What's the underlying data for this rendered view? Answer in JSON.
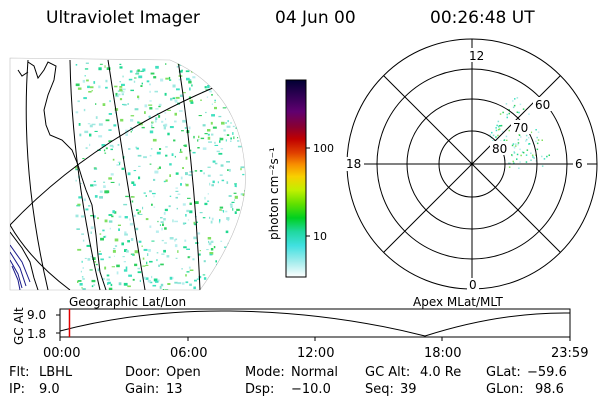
{
  "header": {
    "instrument": "Ultraviolet Imager",
    "date": "04 Jun 00",
    "time": "00:26:48 UT"
  },
  "geo_panel": {
    "label": "Geographic Lat/Lon"
  },
  "colorbar": {
    "unit_label": "photon cm⁻²s⁻¹",
    "ticks": [
      "100",
      "10"
    ],
    "colors": [
      "#000033",
      "#2a0050",
      "#600070",
      "#8a0030",
      "#c00000",
      "#e04000",
      "#f89000",
      "#f8d000",
      "#c0f000",
      "#60e000",
      "#00d020",
      "#20d8a0",
      "#40e0e0",
      "#a0ecec",
      "#ffffff"
    ]
  },
  "polar_panel": {
    "label": "Apex MLat/MLT",
    "mlt_labels": {
      "top": "12",
      "right": "6",
      "bottom": "0",
      "left": "18"
    },
    "lat_labels": [
      "60",
      "70",
      "80"
    ]
  },
  "timeline": {
    "ylabel": "GC Alt",
    "y_ticks": [
      "9.0",
      "1.8"
    ],
    "x_ticks": [
      "00:00",
      "06:00",
      "12:00",
      "18:00",
      "23:59"
    ],
    "current_time_fraction": 0.0186
  },
  "status": {
    "filter_label": "Flt:",
    "filter_value": "LBHL",
    "ip_label": "IP:",
    "ip_value": "9.0",
    "door_label": "Door:",
    "door_value": "Open",
    "gain_label": "Gain:",
    "gain_value": "13",
    "mode_label": "Mode:",
    "mode_value": "Normal",
    "dsp_label": "Dsp:",
    "dsp_value": "−10.0",
    "gcalt_label": "GC Alt:",
    "gcalt_value": "4.0 Re",
    "seq_label": "Seq:",
    "seq_value": "39",
    "glat_label": "GLat:",
    "glat_value": "−59.6",
    "glon_label": "GLon:",
    "glon_value": "98.6"
  },
  "colors": {
    "marker": "#e00000",
    "line": "#000000",
    "background": "#ffffff"
  }
}
